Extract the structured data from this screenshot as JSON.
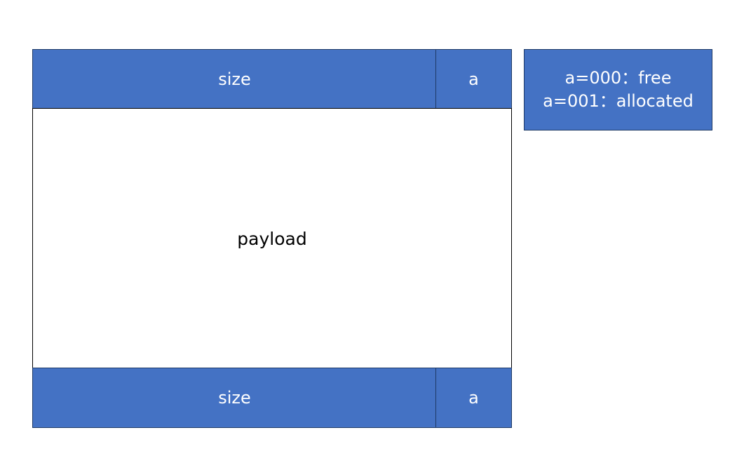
{
  "header": {
    "size_label": "size",
    "alloc_label": "a"
  },
  "body": {
    "payload_label": "payload"
  },
  "footer": {
    "size_label": "size",
    "alloc_label": "a"
  },
  "legend": {
    "line1": "a=000：free",
    "line2": "a=001：allocated"
  },
  "colors": {
    "block_fill": "#4472c4",
    "block_border": "#1f3a66",
    "payload_fill": "#ffffff"
  }
}
